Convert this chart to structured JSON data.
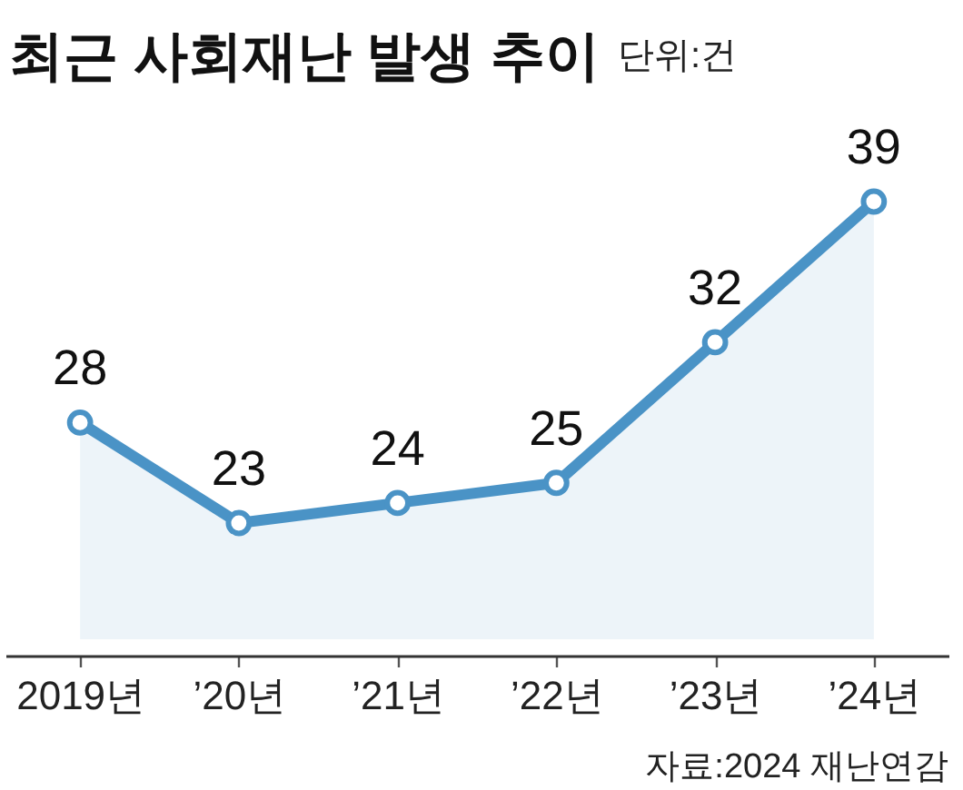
{
  "chart_data": {
    "type": "area",
    "title": "최근 사회재난 발생 추이",
    "subtitle": "단위:건",
    "annotations": [
      "자료:2024 재난연감"
    ],
    "categories": [
      "2019년",
      "’20년",
      "’21년",
      "’22년",
      "’23년",
      "’24년"
    ],
    "series": [
      {
        "color": "#4a93c6",
        "values": [
          28,
          23,
          24,
          25,
          32,
          39
        ]
      }
    ],
    "tick_labels": "x",
    "data_labels": true,
    "marker": "circle",
    "line_style": "solid"
  }
}
